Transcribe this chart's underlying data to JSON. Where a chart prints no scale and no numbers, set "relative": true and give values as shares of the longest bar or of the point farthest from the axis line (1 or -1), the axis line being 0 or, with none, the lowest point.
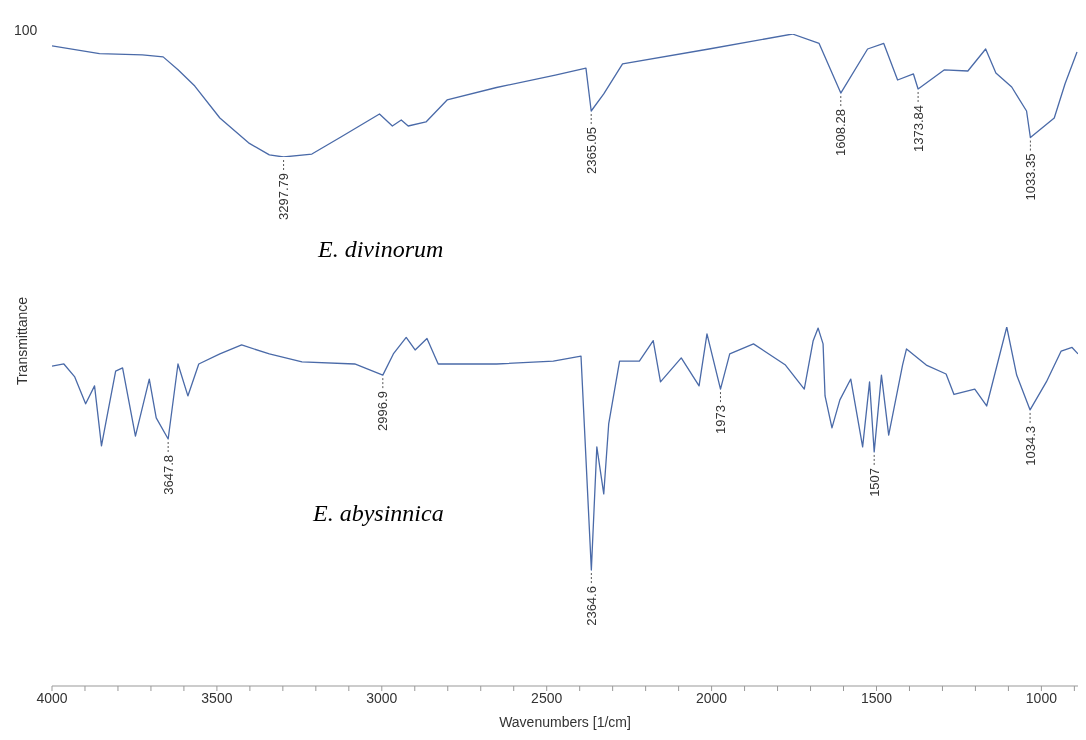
{
  "chart_data": [
    {
      "type": "line",
      "title": "E. divinorum",
      "relative": true,
      "xlim": [
        4000,
        889
      ],
      "tick_labels": false,
      "annotations": [
        "100",
        {
          "text": "3297.79",
          "x": 3297.79,
          "y": 0
        },
        {
          "text": "2365.05",
          "x": 2365.05,
          "y": 0.374
        },
        {
          "text": "1608.28",
          "x": 1608.28,
          "y": 0.52
        },
        {
          "text": "1373.84",
          "x": 1373.84,
          "y": 0.553
        },
        {
          "text": "1033.35",
          "x": 1033.35,
          "y": 0.158
        }
      ],
      "x": [
        4000,
        3856,
        3726,
        3663,
        3617,
        3567,
        3491,
        3404,
        3341,
        3297.79,
        3212,
        3124,
        3007,
        2968,
        2941,
        2920,
        2866,
        2802,
        2652,
        2474,
        2381,
        2365.05,
        2327,
        2270,
        2008,
        1755,
        1674,
        1608.28,
        1527,
        1478,
        1436,
        1388,
        1373.84,
        1295,
        1223,
        1169,
        1138,
        1090,
        1045,
        1033.35,
        961,
        928,
        892
      ],
      "series": [
        {
          "color": "#4a6aa8",
          "values": [
            0.904,
            0.84,
            0.83,
            0.814,
            0.708,
            0.577,
            0.317,
            0.115,
            0.017,
            0,
            0.024,
            0.163,
            0.35,
            0.252,
            0.301,
            0.252,
            0.285,
            0.464,
            0.565,
            0.666,
            0.723,
            0.374,
            0.513,
            0.757,
            0.878,
            1.0,
            0.923,
            0.52,
            0.878,
            0.923,
            0.626,
            0.675,
            0.553,
            0.708,
            0.699,
            0.878,
            0.683,
            0.569,
            0.374,
            0.158,
            0.317,
            0.597,
            0.854
          ]
        }
      ]
    },
    {
      "type": "line",
      "title": "E. abysinnica",
      "relative": true,
      "xlim": [
        4000,
        889
      ],
      "tick_labels": "x",
      "xlabel": "Wavenumbers [1/cm]",
      "ylabel": "Transmittance",
      "xticks": [
        4000,
        {
          "value": 3900,
          "label": null
        },
        {
          "value": 3800,
          "label": null
        },
        {
          "value": 3700,
          "label": null
        },
        {
          "value": 3600,
          "label": null
        },
        3500,
        {
          "value": 3400,
          "label": null
        },
        {
          "value": 3300,
          "label": null
        },
        {
          "value": 3200,
          "label": null
        },
        {
          "value": 3100,
          "label": null
        },
        3000,
        {
          "value": 2900,
          "label": null
        },
        {
          "value": 2800,
          "label": null
        },
        {
          "value": 2700,
          "label": null
        },
        {
          "value": 2600,
          "label": null
        },
        2500,
        {
          "value": 2400,
          "label": null
        },
        {
          "value": 2300,
          "label": null
        },
        {
          "value": 2200,
          "label": null
        },
        {
          "value": 2100,
          "label": null
        },
        2000,
        {
          "value": 1900,
          "label": null
        },
        {
          "value": 1800,
          "label": null
        },
        {
          "value": 1700,
          "label": null
        },
        {
          "value": 1600,
          "label": null
        },
        1500,
        {
          "value": 1400,
          "label": null
        },
        {
          "value": 1300,
          "label": null
        },
        {
          "value": 1200,
          "label": null
        },
        {
          "value": 1100,
          "label": null
        },
        1000,
        {
          "value": 900,
          "label": null
        }
      ],
      "annotations": [
        {
          "text": "3647.8",
          "x": 3647.8,
          "y": 0.688
        },
        {
          "text": "2996.9",
          "x": 2996.9,
          "y": 0.866
        },
        {
          "text": "2364.6",
          "x": 2364.6,
          "y": 0.323
        },
        {
          "text": "1973",
          "x": 1973,
          "y": 0.827
        },
        {
          "text": "1507",
          "x": 1507,
          "y": 0.652
        },
        {
          "text": "1034.3",
          "x": 1034.3,
          "y": 0.769
        }
      ],
      "x": [
        4000,
        3964,
        3931,
        3898,
        3871,
        3850,
        3834,
        3807,
        3786,
        3747,
        3705,
        3684,
        3647.8,
        3618,
        3588,
        3555,
        3491,
        3425,
        3341,
        3242,
        3082,
        2996.9,
        2965,
        2926,
        2899,
        2863,
        2829,
        2652,
        2480,
        2396,
        2364.6,
        2348,
        2327,
        2312,
        2279,
        2219,
        2177,
        2155,
        2092,
        2038,
        2014,
        1973,
        1945,
        1873,
        1776,
        1719,
        1692,
        1677,
        1662,
        1656,
        1635,
        1611,
        1578,
        1542,
        1521,
        1507,
        1485,
        1463,
        1421,
        1409,
        1349,
        1289,
        1265,
        1202,
        1166,
        1105,
        1075,
        1034.3,
        985,
        940,
        907,
        889
      ],
      "series": [
        {
          "color": "#4a6aa8",
          "values": [
            0.891,
            0.897,
            0.861,
            0.786,
            0.836,
            0.669,
            0.747,
            0.877,
            0.886,
            0.696,
            0.855,
            0.747,
            0.688,
            0.897,
            0.808,
            0.897,
            0.925,
            0.95,
            0.925,
            0.903,
            0.897,
            0.866,
            0.925,
            0.971,
            0.936,
            0.968,
            0.897,
            0.897,
            0.905,
            0.919,
            0.323,
            0.666,
            0.535,
            0.73,
            0.905,
            0.905,
            0.962,
            0.847,
            0.914,
            0.836,
            0.981,
            0.827,
            0.925,
            0.953,
            0.894,
            0.827,
            0.962,
            0.997,
            0.953,
            0.808,
            0.719,
            0.797,
            0.855,
            0.666,
            0.847,
            0.652,
            0.866,
            0.699,
            0.894,
            0.939,
            0.894,
            0.869,
            0.812,
            0.827,
            0.78,
            1.0,
            0.866,
            0.769,
            0.847,
            0.933,
            0.943,
            0.925
          ]
        }
      ]
    }
  ]
}
